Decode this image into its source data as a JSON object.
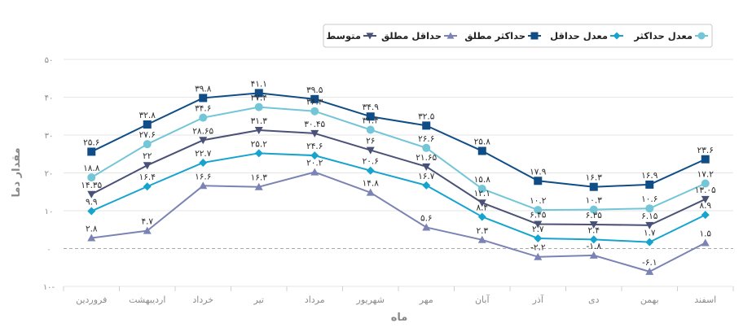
{
  "chart_data": {
    "type": "line",
    "xlabel": "ماه",
    "ylabel": "مقدار دما",
    "ylim": [
      -10,
      50
    ],
    "ytick_values": [
      -10,
      0,
      10,
      20,
      30,
      40,
      50
    ],
    "ytick_labels": [
      "۱۰-",
      "۰",
      "۱۰",
      "۲۰",
      "۳۰",
      "۴۰",
      "۵۰"
    ],
    "grid": true,
    "zero_line_dashed": true,
    "legend_position": "top-right",
    "categories": [
      "فروردین",
      "اردیبهشت",
      "خرداد",
      "تیر",
      "مرداد",
      "شهریور",
      "مهر",
      "آبان",
      "آذر",
      "دی",
      "بهمن",
      "اسفند"
    ],
    "series": [
      {
        "name": "معدل حداکثر",
        "color": "#72c6d8",
        "marker": "circle",
        "values": [
          18.8,
          27.6,
          34.6,
          37.4,
          36.3,
          31.4,
          26.6,
          15.8,
          10.2,
          10.3,
          10.6,
          17.2
        ],
        "labels": [
          "۱۸.۸",
          "۲۷.۶",
          "۳۴.۶",
          "۳۷.۴",
          "۳۶.۳",
          "۳۱.۴",
          "۲۶.۶",
          "۱۵.۸",
          "۱۰.۲",
          "۱۰.۳",
          "۱۰.۶",
          "۱۷.۲"
        ]
      },
      {
        "name": "معدل حداقل",
        "color": "#16a4cf",
        "marker": "diamond",
        "values": [
          9.9,
          16.4,
          22.7,
          25.2,
          24.6,
          20.6,
          16.7,
          8.4,
          2.7,
          2.4,
          1.7,
          8.9
        ],
        "labels": [
          "۹.۹",
          "۱۶.۴",
          "۲۲.۷",
          "۲۵.۲",
          "۲۴.۶",
          "۲۰.۶",
          "۱۶.۷",
          "۸.۴",
          "۲.۷",
          "۲.۴",
          "۱.۷",
          "۸.۹"
        ]
      },
      {
        "name": "حداکثر مطلق",
        "color": "#104d86",
        "marker": "square",
        "values": [
          25.6,
          32.8,
          39.8,
          41.1,
          39.5,
          34.9,
          32.5,
          25.8,
          17.9,
          16.3,
          16.9,
          23.6
        ],
        "labels": [
          "۲۵.۶",
          "۳۲.۸",
          "۳۹.۸",
          "۴۱.۱",
          "۳۹.۵",
          "۳۴.۹",
          "۳۲.۵",
          "۲۵.۸",
          "۱۷.۹",
          "۱۶.۳",
          "۱۶.۹",
          "۲۳.۶"
        ]
      },
      {
        "name": "حداقل مطلق",
        "color": "#7b83b5",
        "marker": "triangle-up",
        "values": [
          2.8,
          4.7,
          16.6,
          16.3,
          20.2,
          14.8,
          5.6,
          2.3,
          -2.2,
          -1.8,
          -6.1,
          1.5
        ],
        "labels": [
          "۲.۸",
          "۴.۷",
          "۱۶.۶",
          "۱۶.۳",
          "۲۰.۲",
          "۱۴.۸",
          "۵.۶",
          "۲.۳",
          "-۲.۲",
          "-۱.۸",
          "-۶.۱",
          "۱.۵"
        ]
      },
      {
        "name": "متوسط",
        "color": "#4a5177",
        "marker": "triangle-down",
        "values": [
          14.35,
          22,
          28.65,
          31.3,
          30.45,
          26,
          21.65,
          12.1,
          6.45,
          6.35,
          6.15,
          13.05
        ],
        "labels": [
          "۱۴.۳۵",
          "۲۲",
          "۲۸.۶۵",
          "۳۱.۳",
          "۳۰.۴۵",
          "۲۶",
          "۲۱.۶۵",
          "۱۲.۱",
          "۶.۴۵",
          "۶.۳۵",
          "۶.۱۵",
          "۱۳.۰۵"
        ]
      }
    ]
  }
}
